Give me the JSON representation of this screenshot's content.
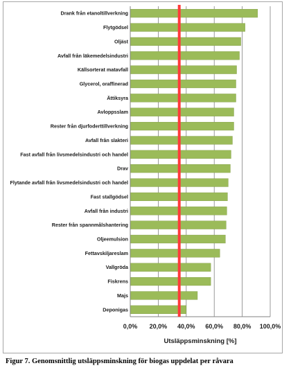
{
  "chart_data": {
    "type": "bar",
    "orientation": "horizontal",
    "categories": [
      "Drank från etanoltillverkning",
      "Flytgödsel",
      "Oljäst",
      "Avfall från läkemedelsindustri",
      "Källsorterat matavfall",
      "Glycerol, oraffinerad",
      "Ättiksyra",
      "Avloppsslam",
      "Rester från djurfoderttillverkning",
      "Avfall från slakteri",
      "Fast avfall från livsmedelsindustri och handel",
      "Drav",
      "Flytande avfall från livsmedelsindustri och handel",
      "Fast stallgödsel",
      "Avfall från industri",
      "Rester från spannmålshantering",
      "Oljeemulsion",
      "Fettavskiljareslam",
      "Vallgröda",
      "Fiskrens",
      "Majs",
      "Deponigas"
    ],
    "values": [
      0.91,
      0.82,
      0.79,
      0.78,
      0.76,
      0.755,
      0.755,
      0.74,
      0.74,
      0.73,
      0.72,
      0.715,
      0.7,
      0.695,
      0.69,
      0.685,
      0.68,
      0.64,
      0.575,
      0.575,
      0.48,
      0.4
    ],
    "xlabel": "Utsläppsminskning [%]",
    "xlim": [
      0,
      1.0
    ],
    "xticks": [
      "0,0%",
      "20,0%",
      "40,0%",
      "60,0%",
      "80,0%",
      "100,0%"
    ],
    "reference_line": 0.35,
    "grid": "vertical major gridlines",
    "bar_color": "#9bbb59",
    "reference_color": "#ff3b3b",
    "gridline_color": "#808080"
  },
  "caption": "Figur 7. Genomsnittlig utsläppsminskning för biogas uppdelat per råvara"
}
